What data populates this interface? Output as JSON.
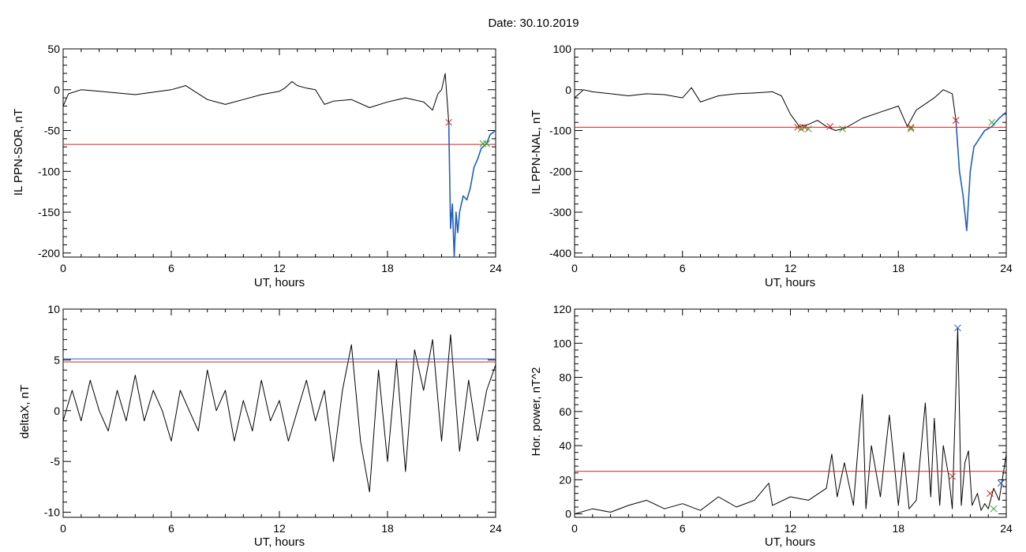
{
  "title": "Date:  30.10.2019",
  "chart_data": [
    {
      "type": "line",
      "ylabel": "IL PPN-SOR, nT",
      "xlabel": "UT, hours",
      "xlim": [
        0,
        24
      ],
      "ylim": [
        -205,
        50
      ],
      "xticks": [
        0,
        6,
        12,
        18,
        24
      ],
      "yticks": [
        -200,
        -150,
        -100,
        -50,
        0,
        50
      ],
      "threshold": -67,
      "series": [
        {
          "color": "#000000",
          "x": [
            0,
            0.3,
            1,
            2,
            3,
            4,
            5,
            6,
            6.8,
            7.5,
            8,
            9,
            10,
            11,
            12,
            12.3,
            12.7,
            13,
            13.5,
            14,
            14.5,
            15,
            16,
            17,
            18,
            19,
            20,
            20.5,
            20.8,
            21.0,
            21.2,
            21.4
          ],
          "y": [
            -20,
            -5,
            0,
            -2,
            -4,
            -6,
            -3,
            0,
            5,
            -5,
            -12,
            -18,
            -12,
            -6,
            -2,
            2,
            10,
            5,
            2,
            0,
            -18,
            -14,
            -12,
            -22,
            -15,
            -10,
            -15,
            -25,
            -5,
            0,
            20,
            -40
          ]
        },
        {
          "color": "#1f5fbf",
          "x": [
            21.4,
            21.5,
            21.6,
            21.7,
            21.8,
            21.9,
            22.0,
            22.2,
            22.4,
            22.6,
            22.8,
            23.0,
            23.2,
            23.5,
            23.7,
            24
          ],
          "y": [
            -40,
            -170,
            -140,
            -205,
            -150,
            -175,
            -150,
            -130,
            -135,
            -120,
            -95,
            -85,
            -72,
            -66,
            -55,
            -50
          ]
        }
      ],
      "markers": [
        {
          "x": 21.4,
          "y": -40,
          "color": "#d62020"
        },
        {
          "x": 23.3,
          "y": -66,
          "color": "#2aa02a"
        },
        {
          "x": 23.5,
          "y": -66,
          "color": "#2aa02a"
        }
      ]
    },
    {
      "type": "line",
      "ylabel": "IL PPN-NAL, nT",
      "xlabel": "UT, hours",
      "xlim": [
        0,
        24
      ],
      "ylim": [
        -410,
        100
      ],
      "xticks": [
        0,
        6,
        12,
        18,
        24
      ],
      "yticks": [
        -400,
        -300,
        -200,
        -100,
        0,
        100
      ],
      "threshold": -92,
      "series": [
        {
          "color": "#000000",
          "x": [
            0,
            0.5,
            1,
            2,
            3,
            4,
            5,
            6,
            6.5,
            7,
            8,
            9,
            10,
            11,
            11.5,
            12,
            12.5,
            13,
            13.5,
            14,
            14.5,
            15,
            16,
            17,
            18,
            18.5,
            19,
            20,
            20.5,
            21,
            21.2
          ],
          "y": [
            -20,
            0,
            -5,
            -10,
            -15,
            -10,
            -12,
            -20,
            5,
            -30,
            -15,
            -10,
            -8,
            -5,
            -15,
            -60,
            -90,
            -85,
            -75,
            -90,
            -100,
            -95,
            -70,
            -55,
            -40,
            -90,
            -50,
            -20,
            0,
            -10,
            -75
          ]
        },
        {
          "color": "#1f5fbf",
          "x": [
            21.2,
            21.4,
            21.6,
            21.8,
            22.0,
            22.2,
            22.5,
            22.8,
            23.2,
            23.6,
            24
          ],
          "y": [
            -75,
            -200,
            -260,
            -345,
            -200,
            -140,
            -120,
            -100,
            -90,
            -70,
            -55
          ]
        }
      ],
      "markers": [
        {
          "x": 12.4,
          "y": -92,
          "color": "#d62020"
        },
        {
          "x": 12.6,
          "y": -96,
          "color": "#2aa02a"
        },
        {
          "x": 12.8,
          "y": -92,
          "color": "#d62020"
        },
        {
          "x": 13.0,
          "y": -96,
          "color": "#2aa02a"
        },
        {
          "x": 14.2,
          "y": -90,
          "color": "#d62020"
        },
        {
          "x": 14.9,
          "y": -96,
          "color": "#2aa02a"
        },
        {
          "x": 18.7,
          "y": -92,
          "color": "#d62020"
        },
        {
          "x": 18.7,
          "y": -96,
          "color": "#2aa02a"
        },
        {
          "x": 21.2,
          "y": -75,
          "color": "#d62020"
        },
        {
          "x": 23.2,
          "y": -80,
          "color": "#2aa02a"
        }
      ]
    },
    {
      "type": "line",
      "ylabel": "deltaX, nT",
      "xlabel": "UT, hours",
      "xlim": [
        0,
        24
      ],
      "ylim": [
        -10.5,
        10
      ],
      "xticks": [
        0,
        6,
        12,
        18,
        24
      ],
      "yticks": [
        -10,
        -5,
        0,
        5,
        10
      ],
      "threshold": 4.8,
      "threshold2": 5.1,
      "series": [
        {
          "color": "#000000",
          "x": [
            0,
            0.5,
            1,
            1.5,
            2,
            2.5,
            3,
            3.5,
            4,
            4.5,
            5,
            5.5,
            6,
            6.5,
            7,
            7.5,
            8,
            8.5,
            9,
            9.5,
            10,
            10.5,
            11,
            11.5,
            12,
            12.5,
            13,
            13.5,
            14,
            14.5,
            15,
            15.5,
            16,
            16.5,
            17,
            17.5,
            18,
            18.5,
            19,
            19.5,
            20,
            20.5,
            21,
            21.5,
            22,
            22.5,
            23,
            23.5,
            24
          ],
          "y": [
            -1,
            2,
            -1,
            3,
            0,
            -2,
            2,
            -1,
            3.5,
            -1,
            2,
            0,
            -3,
            2,
            0,
            -2,
            4,
            0,
            2,
            -3,
            1,
            -2,
            3,
            -1,
            1,
            -3,
            0,
            3,
            -1,
            2,
            -5,
            2,
            6.5,
            -3,
            -8,
            4,
            -5,
            5,
            -6,
            6,
            2,
            7,
            -3,
            7.5,
            -4,
            3,
            -3,
            2,
            4.5
          ]
        }
      ],
      "markers": []
    },
    {
      "type": "line",
      "ylabel": "Hor. power, nT^2",
      "xlabel": "UT, hours",
      "xlim": [
        0,
        24
      ],
      "ylim": [
        -2,
        120
      ],
      "xticks": [
        0,
        6,
        12,
        18,
        24
      ],
      "yticks": [
        0,
        20,
        40,
        60,
        80,
        100,
        120
      ],
      "threshold": 25,
      "series": [
        {
          "color": "#000000",
          "x": [
            0,
            1,
            2,
            3,
            4,
            5,
            6,
            7,
            8,
            9,
            10,
            10.8,
            11,
            12,
            13,
            14,
            14.3,
            14.6,
            15,
            15.5,
            16,
            16.2,
            16.5,
            17,
            17.5,
            18,
            18.3,
            18.6,
            19,
            19.5,
            19.8,
            20,
            20.3,
            20.5,
            20.8,
            21,
            21.3,
            21.5,
            21.7,
            21.9,
            22.1,
            22.4,
            22.6,
            22.8,
            23,
            23.3,
            23.6,
            24
          ],
          "y": [
            0,
            3,
            1,
            5,
            8,
            3,
            6,
            2,
            10,
            4,
            8,
            18,
            5,
            10,
            8,
            15,
            35,
            10,
            30,
            5,
            70,
            3,
            40,
            10,
            58,
            5,
            36,
            3,
            8,
            65,
            10,
            56,
            5,
            40,
            22,
            3,
            109,
            5,
            30,
            37,
            5,
            12,
            2,
            6,
            3,
            15,
            8,
            35
          ]
        }
      ],
      "markers": [
        {
          "x": 21.3,
          "y": 109,
          "color": "#1f5fbf"
        },
        {
          "x": 21.0,
          "y": 22,
          "color": "#d62020"
        },
        {
          "x": 23.1,
          "y": 12,
          "color": "#d62020"
        },
        {
          "x": 23.3,
          "y": 3,
          "color": "#2aa02a"
        },
        {
          "x": 23.7,
          "y": 18,
          "color": "#1f5fbf"
        }
      ]
    }
  ]
}
